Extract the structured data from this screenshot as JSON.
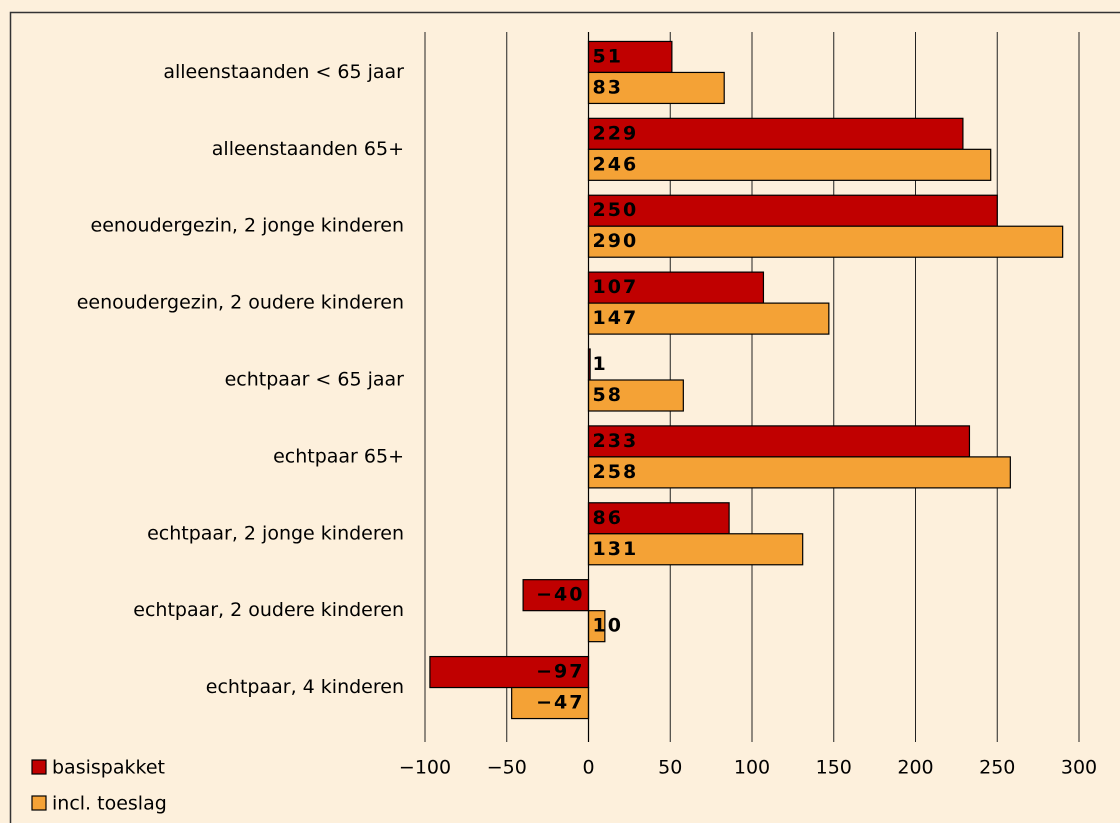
{
  "chart_data": {
    "type": "hbar",
    "categories": [
      "alleenstaanden < 65 jaar",
      "alleenstaanden 65+",
      "eenoudergezin, 2 jonge kinderen",
      "eenoudergezin, 2 oudere kinderen",
      "echtpaar < 65 jaar",
      "echtpaar 65+",
      "echtpaar, 2 jonge kinderen",
      "echtpaar, 2 oudere kinderen",
      "echtpaar, 4 kinderen"
    ],
    "series": [
      {
        "name": "basispakket",
        "color": "#c00000",
        "label_color": "#ffffff",
        "values": [
          51,
          229,
          250,
          107,
          1,
          233,
          86,
          -40,
          -97
        ],
        "value_labels": [
          "51",
          "229",
          "250",
          "107",
          "1",
          "233",
          "86",
          "−40",
          "−97"
        ]
      },
      {
        "name": "incl. toeslag",
        "color": "#f4a236",
        "label_color": "#000000",
        "values": [
          83,
          246,
          290,
          147,
          58,
          258,
          131,
          10,
          -47
        ],
        "value_labels": [
          "83",
          "246",
          "290",
          "147",
          "58",
          "258",
          "131",
          "10",
          "−47"
        ]
      }
    ],
    "xlim": [
      -100,
      300
    ],
    "xticks": [
      {
        "value": -100,
        "label": "−100"
      },
      {
        "value": -50,
        "label": "−50"
      },
      0,
      50,
      100,
      150,
      200,
      250,
      300
    ],
    "grid": true
  }
}
